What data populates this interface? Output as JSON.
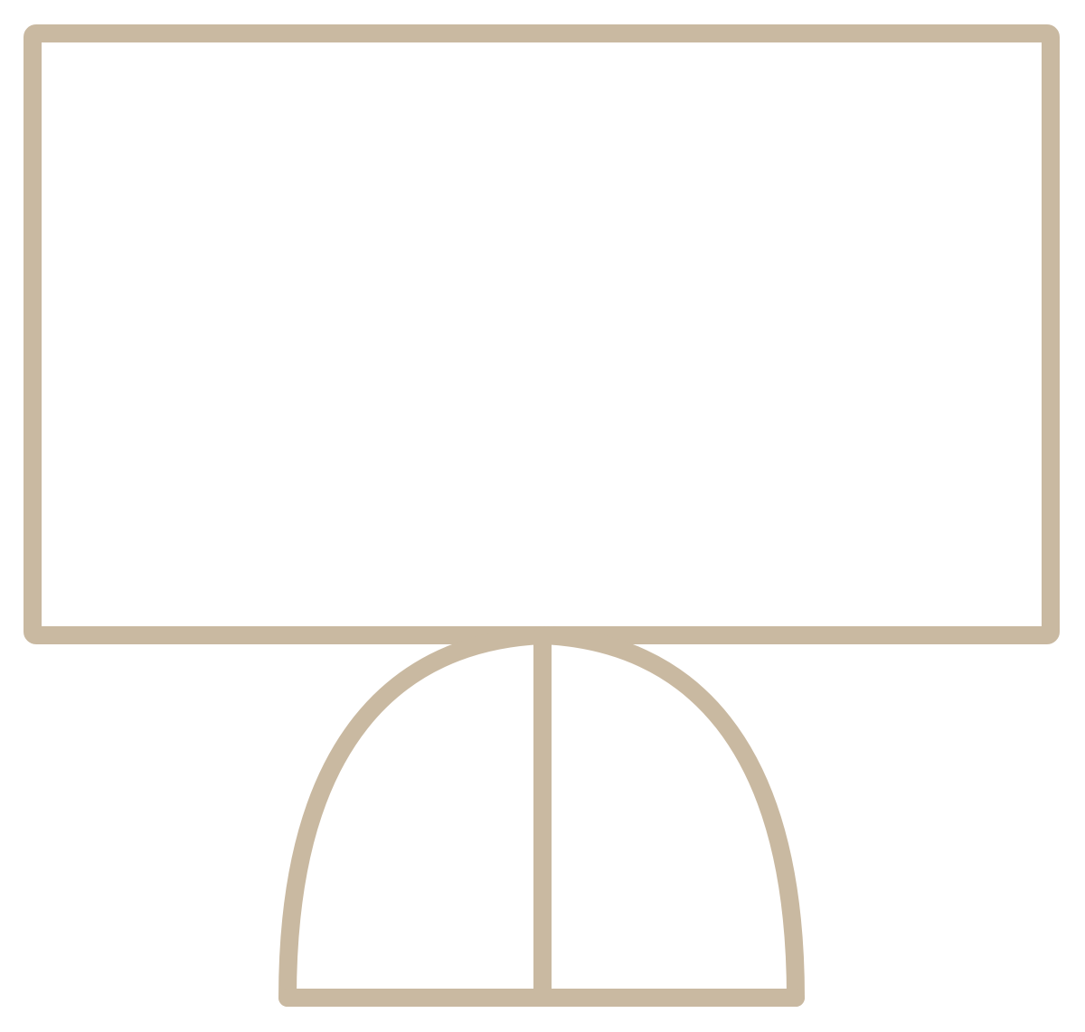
{
  "illustration": {
    "subject": "monitor-icon",
    "stroke_color": "#c9b9a1",
    "background_color": "#ffffff"
  }
}
